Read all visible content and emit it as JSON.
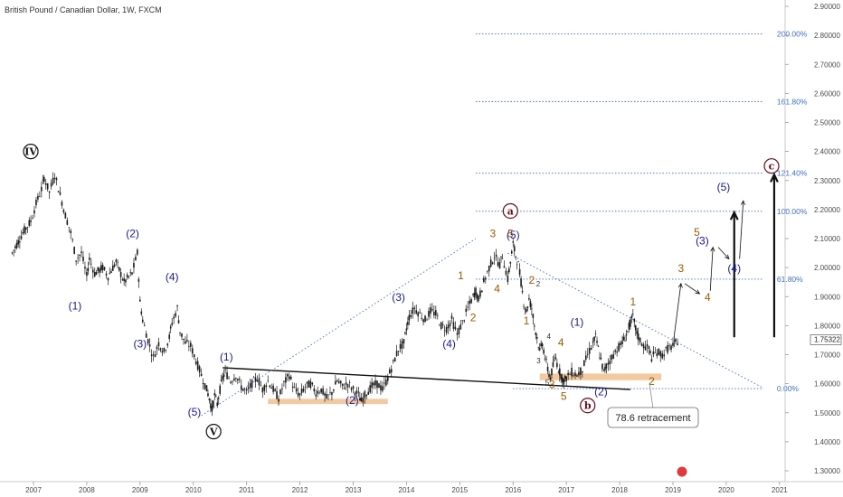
{
  "header": {
    "title": "British Pound / Canadian Dollar, 1W, FXCM"
  },
  "colors": {
    "candle": "#1a1a1a",
    "wave_blue": "#1a1a9e",
    "wave_orange": "#a35a00",
    "wave_dark": "#6b0a1a",
    "fib_line": "#3f6fd6",
    "fib_text": "#3f6fd6",
    "support_zone": "#f3c9a0",
    "arrow": "#111111"
  },
  "chart_data": {
    "type": "candlestick",
    "title": "British Pound / Canadian Dollar, 1W, FXCM",
    "xlabel": "",
    "ylabel": "",
    "xlim": [
      2006.6,
      2021.9
    ],
    "ylim": [
      1.26,
      2.92
    ],
    "x_ticks": [
      "2007",
      "2008",
      "2009",
      "2010",
      "2011",
      "2012",
      "2013",
      "2014",
      "2015",
      "2016",
      "2017",
      "2018",
      "2019",
      "2020",
      "2021"
    ],
    "y_ticks": [
      "1.30000",
      "1.40000",
      "1.50000",
      "1.60000",
      "1.70000",
      "1.80000",
      "1.90000",
      "2.00000",
      "2.10000",
      "2.20000",
      "2.30000",
      "2.40000",
      "2.50000",
      "2.60000",
      "2.70000",
      "2.80000",
      "2.90000"
    ],
    "current_price_label": "1.75322",
    "current_price": 1.7532,
    "price_path": [
      [
        2006.6,
        2.05
      ],
      [
        2006.8,
        2.12
      ],
      [
        2006.95,
        2.16
      ],
      [
        2007.05,
        2.22
      ],
      [
        2007.15,
        2.27
      ],
      [
        2007.2,
        2.31
      ],
      [
        2007.3,
        2.26
      ],
      [
        2007.4,
        2.32
      ],
      [
        2007.5,
        2.25
      ],
      [
        2007.6,
        2.18
      ],
      [
        2007.7,
        2.12
      ],
      [
        2007.8,
        2.03
      ],
      [
        2007.9,
        2.05
      ],
      [
        2008.0,
        1.97
      ],
      [
        2008.05,
        2.03
      ],
      [
        2008.15,
        1.98
      ],
      [
        2008.3,
        2.0
      ],
      [
        2008.4,
        1.97
      ],
      [
        2008.55,
        2.02
      ],
      [
        2008.7,
        1.95
      ],
      [
        2008.85,
        1.98
      ],
      [
        2008.95,
        2.05
      ],
      [
        2009.0,
        1.88
      ],
      [
        2009.05,
        1.82
      ],
      [
        2009.15,
        1.75
      ],
      [
        2009.25,
        1.69
      ],
      [
        2009.35,
        1.74
      ],
      [
        2009.45,
        1.71
      ],
      [
        2009.55,
        1.76
      ],
      [
        2009.6,
        1.81
      ],
      [
        2009.7,
        1.86
      ],
      [
        2009.75,
        1.78
      ],
      [
        2009.85,
        1.74
      ],
      [
        2009.95,
        1.73
      ],
      [
        2010.05,
        1.68
      ],
      [
        2010.15,
        1.63
      ],
      [
        2010.25,
        1.58
      ],
      [
        2010.3,
        1.55
      ],
      [
        2010.35,
        1.51
      ],
      [
        2010.4,
        1.56
      ],
      [
        2010.45,
        1.53
      ],
      [
        2010.5,
        1.58
      ],
      [
        2010.55,
        1.62
      ],
      [
        2010.6,
        1.64
      ],
      [
        2010.7,
        1.61
      ],
      [
        2010.8,
        1.63
      ],
      [
        2010.9,
        1.59
      ],
      [
        2011.0,
        1.57
      ],
      [
        2011.1,
        1.6
      ],
      [
        2011.2,
        1.62
      ],
      [
        2011.3,
        1.58
      ],
      [
        2011.4,
        1.61
      ],
      [
        2011.5,
        1.58
      ],
      [
        2011.6,
        1.55
      ],
      [
        2011.7,
        1.6
      ],
      [
        2011.8,
        1.63
      ],
      [
        2011.9,
        1.58
      ],
      [
        2012.0,
        1.56
      ],
      [
        2012.1,
        1.59
      ],
      [
        2012.2,
        1.6
      ],
      [
        2012.3,
        1.57
      ],
      [
        2012.4,
        1.58
      ],
      [
        2012.5,
        1.55
      ],
      [
        2012.6,
        1.57
      ],
      [
        2012.7,
        1.61
      ],
      [
        2012.8,
        1.59
      ],
      [
        2012.9,
        1.6
      ],
      [
        2013.0,
        1.58
      ],
      [
        2013.1,
        1.56
      ],
      [
        2013.15,
        1.54
      ],
      [
        2013.25,
        1.57
      ],
      [
        2013.35,
        1.59
      ],
      [
        2013.45,
        1.6
      ],
      [
        2013.55,
        1.58
      ],
      [
        2013.65,
        1.62
      ],
      [
        2013.75,
        1.67
      ],
      [
        2013.85,
        1.72
      ],
      [
        2013.95,
        1.74
      ],
      [
        2014.0,
        1.79
      ],
      [
        2014.05,
        1.83
      ],
      [
        2014.15,
        1.86
      ],
      [
        2014.25,
        1.84
      ],
      [
        2014.35,
        1.82
      ],
      [
        2014.45,
        1.85
      ],
      [
        2014.55,
        1.84
      ],
      [
        2014.65,
        1.8
      ],
      [
        2014.75,
        1.79
      ],
      [
        2014.85,
        1.82
      ],
      [
        2014.95,
        1.77
      ],
      [
        2015.05,
        1.81
      ],
      [
        2015.15,
        1.86
      ],
      [
        2015.25,
        1.9
      ],
      [
        2015.3,
        1.92
      ],
      [
        2015.35,
        1.89
      ],
      [
        2015.45,
        1.95
      ],
      [
        2015.55,
        2.0
      ],
      [
        2015.65,
        2.04
      ],
      [
        2015.75,
        2.01
      ],
      [
        2015.8,
        2.04
      ],
      [
        2015.9,
        1.96
      ],
      [
        2015.95,
        2.02
      ],
      [
        2016.0,
        2.08
      ],
      [
        2016.05,
        2.04
      ],
      [
        2016.1,
        2.01
      ],
      [
        2016.15,
        1.95
      ],
      [
        2016.2,
        1.88
      ],
      [
        2016.25,
        1.85
      ],
      [
        2016.3,
        1.89
      ],
      [
        2016.35,
        1.86
      ],
      [
        2016.4,
        1.8
      ],
      [
        2016.45,
        1.76
      ],
      [
        2016.5,
        1.71
      ],
      [
        2016.55,
        1.74
      ],
      [
        2016.6,
        1.69
      ],
      [
        2016.65,
        1.65
      ],
      [
        2016.7,
        1.62
      ],
      [
        2016.75,
        1.66
      ],
      [
        2016.8,
        1.69
      ],
      [
        2016.85,
        1.65
      ],
      [
        2016.9,
        1.63
      ],
      [
        2016.95,
        1.61
      ],
      [
        2017.0,
        1.62
      ],
      [
        2017.1,
        1.64
      ],
      [
        2017.2,
        1.63
      ],
      [
        2017.3,
        1.65
      ],
      [
        2017.4,
        1.7
      ],
      [
        2017.5,
        1.74
      ],
      [
        2017.55,
        1.76
      ],
      [
        2017.6,
        1.72
      ],
      [
        2017.65,
        1.68
      ],
      [
        2017.7,
        1.64
      ],
      [
        2017.75,
        1.66
      ],
      [
        2017.85,
        1.69
      ],
      [
        2017.95,
        1.72
      ],
      [
        2018.05,
        1.74
      ],
      [
        2018.1,
        1.76
      ],
      [
        2018.15,
        1.78
      ],
      [
        2018.2,
        1.81
      ],
      [
        2018.25,
        1.83
      ],
      [
        2018.3,
        1.79
      ],
      [
        2018.35,
        1.76
      ],
      [
        2018.45,
        1.73
      ],
      [
        2018.55,
        1.72
      ],
      [
        2018.6,
        1.69
      ],
      [
        2018.7,
        1.71
      ],
      [
        2018.8,
        1.7
      ],
      [
        2018.9,
        1.72
      ],
      [
        2019.0,
        1.73
      ],
      [
        2019.05,
        1.74
      ],
      [
        2019.12,
        1.753
      ]
    ],
    "fib_levels": [
      {
        "label": "200.00%",
        "price": 2.805
      },
      {
        "label": "161.80%",
        "price": 2.572
      },
      {
        "label": "121.40%",
        "price": 2.325
      },
      {
        "label": "100.00%",
        "price": 2.194
      },
      {
        "label": "61.80%",
        "price": 1.96
      },
      {
        "label": "0.00%",
        "price": 1.583
      }
    ],
    "wave_labels": [
      {
        "text": "(1)",
        "x": 2007.78,
        "y": 1.855,
        "style": "blue"
      },
      {
        "text": "(2)",
        "x": 2008.86,
        "y": 2.105,
        "style": "blue"
      },
      {
        "text": "(3)",
        "x": 2009.0,
        "y": 1.725,
        "style": "blue"
      },
      {
        "text": "(4)",
        "x": 2009.6,
        "y": 1.955,
        "style": "blue"
      },
      {
        "text": "(5)",
        "x": 2010.02,
        "y": 1.49,
        "style": "blue"
      },
      {
        "text": "(1)",
        "x": 2010.62,
        "y": 1.68,
        "style": "blue"
      },
      {
        "text": "(2)",
        "x": 2012.98,
        "y": 1.53,
        "style": "blue"
      },
      {
        "text": "(3)",
        "x": 2013.85,
        "y": 1.885,
        "style": "blue"
      },
      {
        "text": "(4)",
        "x": 2014.8,
        "y": 1.725,
        "style": "blue"
      },
      {
        "text": "(5)",
        "x": 2016.0,
        "y": 2.1,
        "style": "blue"
      },
      {
        "text": "(1)",
        "x": 2017.2,
        "y": 1.8,
        "style": "blue"
      },
      {
        "text": "(2)",
        "x": 2017.65,
        "y": 1.56,
        "style": "blue"
      },
      {
        "text": "(3)",
        "x": 2019.55,
        "y": 2.08,
        "style": "blue"
      },
      {
        "text": "(4)",
        "x": 2020.15,
        "y": 1.985,
        "style": "blue"
      },
      {
        "text": "(5)",
        "x": 2019.95,
        "y": 2.265,
        "style": "blue"
      },
      {
        "text": "1",
        "x": 2015.02,
        "y": 1.96,
        "style": "orange"
      },
      {
        "text": "2",
        "x": 2015.25,
        "y": 1.815,
        "style": "orange"
      },
      {
        "text": "3",
        "x": 2015.62,
        "y": 2.105,
        "style": "orange"
      },
      {
        "text": "4",
        "x": 2015.7,
        "y": 1.915,
        "style": "orange"
      },
      {
        "text": "5",
        "x": 2015.95,
        "y": 2.105,
        "style": "orange"
      },
      {
        "text": "1",
        "x": 2016.25,
        "y": 1.805,
        "style": "orange"
      },
      {
        "text": "2",
        "x": 2016.35,
        "y": 1.945,
        "style": "orange"
      },
      {
        "text": "3",
        "x": 2016.73,
        "y": 1.585,
        "style": "orange"
      },
      {
        "text": "4",
        "x": 2016.9,
        "y": 1.73,
        "style": "orange"
      },
      {
        "text": "5",
        "x": 2016.95,
        "y": 1.545,
        "style": "orange"
      },
      {
        "text": "1",
        "x": 2018.25,
        "y": 1.87,
        "style": "orange"
      },
      {
        "text": "2",
        "x": 2018.6,
        "y": 1.595,
        "style": "orange"
      },
      {
        "text": "3",
        "x": 2019.15,
        "y": 1.985,
        "style": "orange"
      },
      {
        "text": "4",
        "x": 2019.65,
        "y": 1.885,
        "style": "orange"
      },
      {
        "text": "5",
        "x": 2019.45,
        "y": 2.11,
        "style": "orange"
      },
      {
        "text": "2",
        "x": 2016.47,
        "y": 1.935,
        "style": "small"
      },
      {
        "text": "4",
        "x": 2016.67,
        "y": 1.755,
        "style": "small"
      },
      {
        "text": "3",
        "x": 2016.48,
        "y": 1.67,
        "style": "small"
      },
      {
        "text": "5",
        "x": 2016.64,
        "y": 1.595,
        "style": "small"
      }
    ],
    "circle_labels": [
      {
        "text": "IV",
        "x": 2006.95,
        "y": 2.4,
        "style": "dark"
      },
      {
        "text": "V",
        "x": 2010.38,
        "y": 1.435,
        "style": "dark"
      },
      {
        "text": "a",
        "x": 2015.95,
        "y": 2.195,
        "style": "maroon"
      },
      {
        "text": "b",
        "x": 2017.4,
        "y": 1.525,
        "style": "maroon"
      },
      {
        "text": "c",
        "x": 2020.85,
        "y": 2.35,
        "style": "maroon"
      }
    ],
    "annotations": [
      {
        "text": "78.6 retracement",
        "type": "callout"
      }
    ]
  }
}
